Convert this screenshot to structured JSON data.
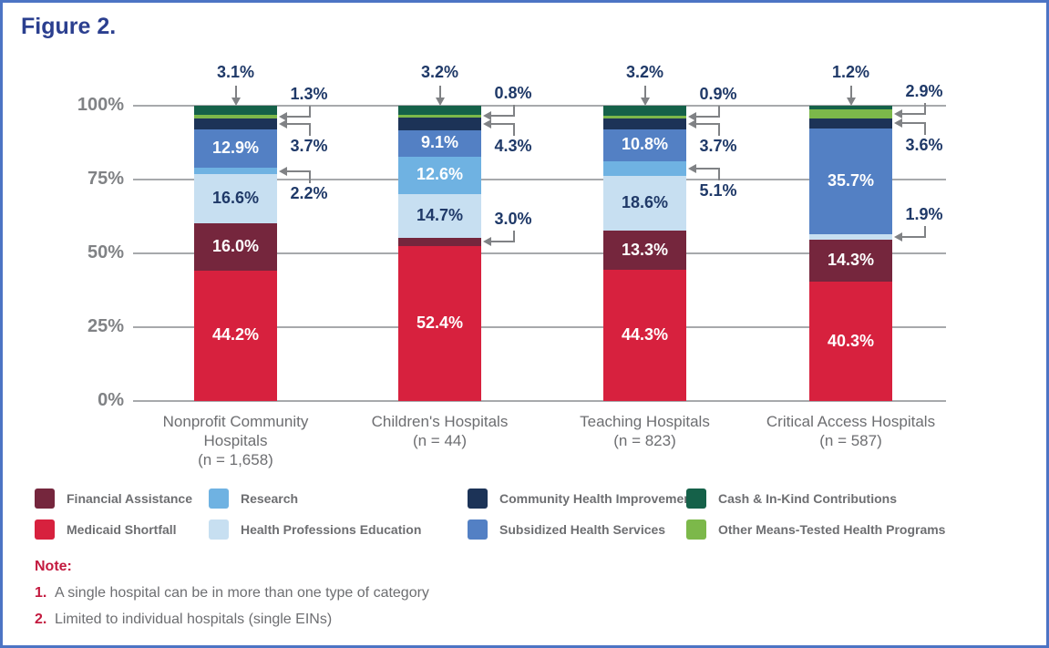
{
  "figure_label": "Figure 2.",
  "colors": {
    "border": "#4C74C4",
    "title": "#2B3F8F",
    "axis_text": "#808285",
    "gridline": "#A7A9AC",
    "category_text": "#6D6E71",
    "callout_text": "#1F3968",
    "arrow": "#808285",
    "note_red": "#C31A3F",
    "note_text": "#6D6E71",
    "legend_text": "#6D6E71"
  },
  "chart_data": {
    "type": "bar",
    "stacked": true,
    "title": "Figure 2.",
    "xlabel": "",
    "ylabel": "",
    "ylim": [
      0,
      100
    ],
    "grid": true,
    "yticks": [
      {
        "label": "0%",
        "value": 0
      },
      {
        "label": "25%",
        "value": 25
      },
      {
        "label": "50%",
        "value": 50
      },
      {
        "label": "75%",
        "value": 75
      },
      {
        "label": "100%",
        "value": 100
      }
    ],
    "categories": [
      {
        "name": "Nonprofit Community Hospitals",
        "n": "(n = 1,658)"
      },
      {
        "name": "Children's Hospitals",
        "n": "(n = 44)"
      },
      {
        "name": "Teaching Hospitals",
        "n": "(n = 823)"
      },
      {
        "name": "Critical Access Hospitals",
        "n": "(n = 587)"
      }
    ],
    "series": [
      {
        "name": "Medicaid Shortfall",
        "color": "#D7213E",
        "text_color": "#FFFFFF",
        "values": [
          44.2,
          52.4,
          44.3,
          40.3
        ]
      },
      {
        "name": "Financial Assistance",
        "color": "#75263D",
        "text_color": "#FFFFFF",
        "values": [
          16.0,
          3.0,
          13.3,
          14.3
        ]
      },
      {
        "name": "Health Professions Education",
        "color": "#C7DFF1",
        "text_color": "#1F3968",
        "values": [
          16.6,
          14.7,
          18.6,
          1.9
        ]
      },
      {
        "name": "Research",
        "color": "#6FB2E2",
        "text_color": "#FFFFFF",
        "values": [
          2.2,
          12.6,
          5.1,
          0
        ]
      },
      {
        "name": "Subsidized Health Services",
        "color": "#5380C4",
        "text_color": "#FFFFFF",
        "values": [
          12.9,
          9.1,
          10.8,
          35.7
        ]
      },
      {
        "name": "Community Health Improvements",
        "color": "#1C3357",
        "text_color": "#FFFFFF",
        "values": [
          3.7,
          4.3,
          3.7,
          3.6
        ]
      },
      {
        "name": "Other Means-Tested Health Programs",
        "color": "#7CB84A",
        "text_color": "#FFFFFF",
        "values": [
          1.3,
          0.8,
          0.9,
          2.9
        ]
      },
      {
        "name": "Cash & In-Kind Contributions",
        "color": "#156149",
        "text_color": "#FFFFFF",
        "values": [
          3.1,
          3.2,
          3.2,
          1.2
        ]
      }
    ],
    "inside_label_min_value": 9,
    "callouts": [
      [
        {
          "series": "Cash & In-Kind Contributions",
          "text": "3.1%",
          "type": "top"
        },
        {
          "series": "Other Means-Tested Health Programs",
          "text": "1.3%",
          "type": "side",
          "label_side": "above"
        },
        {
          "series": "Community Health Improvements",
          "text": "3.7%",
          "type": "side",
          "label_side": "below"
        },
        {
          "series": "Research",
          "text": "2.2%",
          "type": "side",
          "label_side": "below"
        }
      ],
      [
        {
          "series": "Cash & In-Kind Contributions",
          "text": "3.2%",
          "type": "top"
        },
        {
          "series": "Other Means-Tested Health Programs",
          "text": "0.8%",
          "type": "side",
          "label_side": "above"
        },
        {
          "series": "Community Health Improvements",
          "text": "4.3%",
          "type": "side",
          "label_side": "below"
        },
        {
          "series": "Financial Assistance",
          "text": "3.0%",
          "type": "side",
          "label_side": "above"
        }
      ],
      [
        {
          "series": "Cash & In-Kind Contributions",
          "text": "3.2%",
          "type": "top"
        },
        {
          "series": "Other Means-Tested Health Programs",
          "text": "0.9%",
          "type": "side",
          "label_side": "above"
        },
        {
          "series": "Community Health Improvements",
          "text": "3.7%",
          "type": "side",
          "label_side": "below"
        },
        {
          "series": "Research",
          "text": "5.1%",
          "type": "side",
          "label_side": "below"
        }
      ],
      [
        {
          "series": "Cash & In-Kind Contributions",
          "text": "1.2%",
          "type": "top"
        },
        {
          "series": "Other Means-Tested Health Programs",
          "text": "2.9%",
          "type": "side",
          "label_side": "above"
        },
        {
          "series": "Community Health Improvements",
          "text": "3.6%",
          "type": "side",
          "label_side": "below"
        },
        {
          "series": "Health Professions Education",
          "text": "1.9%",
          "type": "side",
          "label_side": "above"
        }
      ]
    ]
  },
  "legend": {
    "columns": [
      [
        {
          "label": "Financial Assistance",
          "color": "#75263D"
        },
        {
          "label": "Medicaid Shortfall",
          "color": "#D7213E"
        }
      ],
      [
        {
          "label": "Research",
          "color": "#6FB2E2"
        },
        {
          "label": "Health Professions Education",
          "color": "#C7DFF1"
        }
      ],
      [
        {
          "label": "Community Health Improvements",
          "color": "#1C3357"
        },
        {
          "label": "Subsidized Health Services",
          "color": "#5380C4"
        }
      ],
      [
        {
          "label": "Cash & In-Kind Contributions",
          "color": "#156149"
        },
        {
          "label": "Other Means-Tested Health Programs",
          "color": "#7CB84A"
        }
      ]
    ]
  },
  "notes": {
    "heading": "Note:",
    "items": [
      {
        "num": "1.",
        "text": "A single hospital can be in more than one type of category"
      },
      {
        "num": "2.",
        "text": "Limited to individual hospitals (single EINs)"
      }
    ]
  }
}
